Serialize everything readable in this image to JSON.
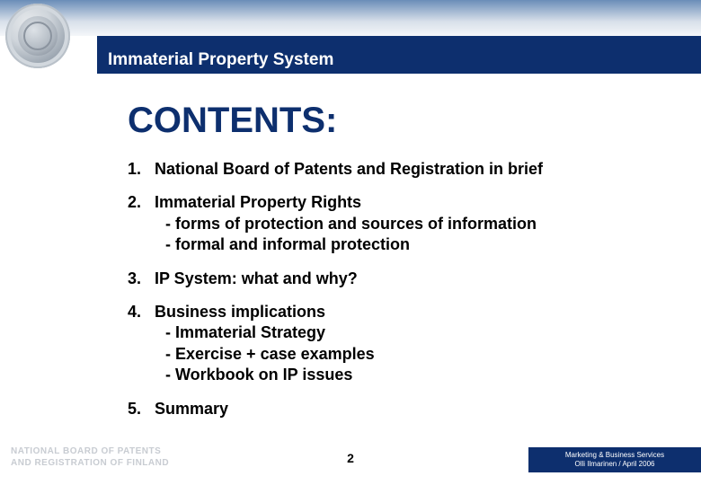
{
  "colors": {
    "blue": "#0d2f6e",
    "gradient_top": "#6a8db8",
    "gradient_bottom": "#f4f6f9",
    "footer_gray": "#c8ccd2"
  },
  "header": {
    "title": "Immaterial Property System"
  },
  "heading": "CONTENTS:",
  "items": [
    {
      "num": "1.",
      "title": "National Board of Patents and Registration in brief",
      "subs": []
    },
    {
      "num": "2.",
      "title": "Immaterial Property Rights",
      "subs": [
        "- forms of protection and sources of information",
        "- formal and informal protection"
      ]
    },
    {
      "num": "3.",
      "title": "IP System: what and why?",
      "subs": []
    },
    {
      "num": "4.",
      "title": "Business implications",
      "subs": [
        "- Immaterial Strategy",
        "- Exercise + case examples",
        "- Workbook on IP issues"
      ]
    },
    {
      "num": "5.",
      "title": "Summary",
      "subs": []
    }
  ],
  "footer": {
    "org_line1": "NATIONAL BOARD OF PATENTS",
    "org_line2": "AND REGISTRATION OF FINLAND",
    "page": "2",
    "right_line1": "Marketing & Business Services",
    "right_line2": "Olli Ilmarinen / April 2006"
  }
}
